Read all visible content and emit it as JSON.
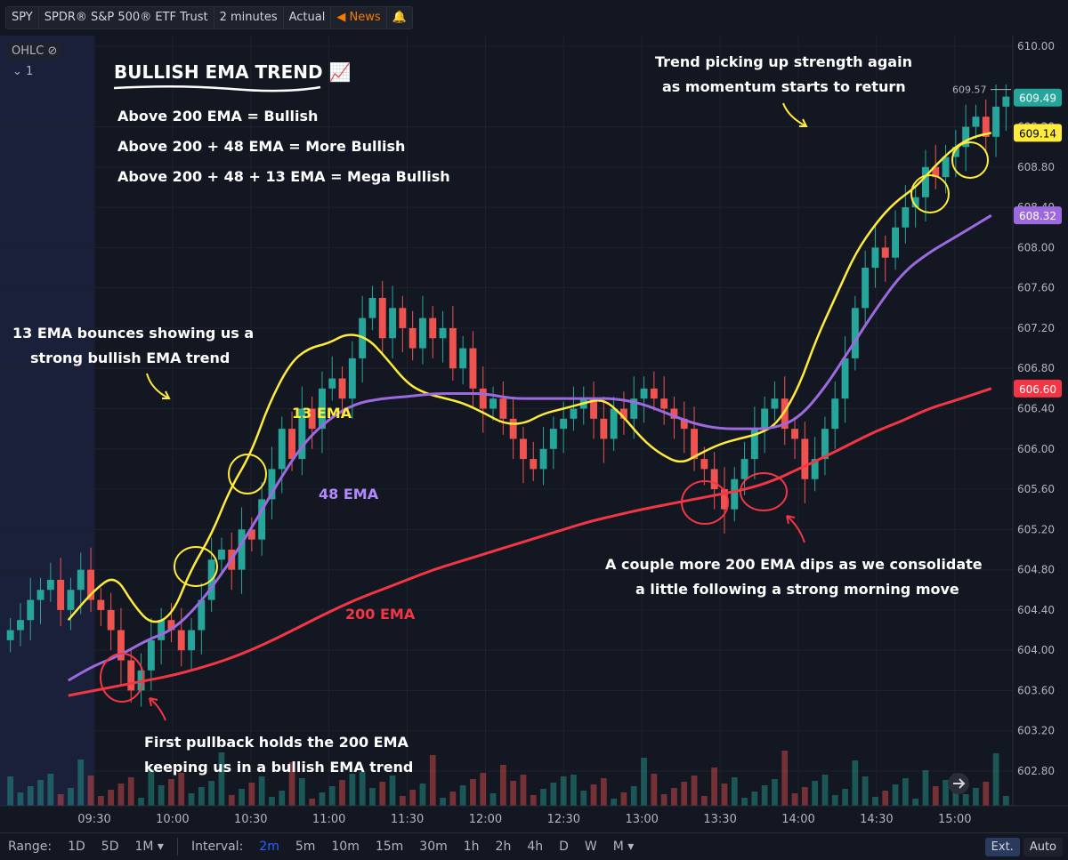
{
  "toolbar": {
    "symbol": "SPY",
    "name": "SPDR® S&P 500® ETF Trust",
    "interval": "2 minutes",
    "mode": "Actual",
    "news": "News",
    "news_icon": "megaphone-icon",
    "alert_icon": "bell-icon"
  },
  "legend": {
    "ohlc_label": "OHLC",
    "collapse_count": "1"
  },
  "bottom": {
    "range_label": "Range:",
    "ranges": [
      "1D",
      "5D",
      "1M"
    ],
    "interval_label": "Interval:",
    "intervals": [
      "2m",
      "5m",
      "10m",
      "15m",
      "30m",
      "1h",
      "2h",
      "4h",
      "D",
      "W",
      "M"
    ],
    "active_interval": "2m",
    "ext": "Ext.",
    "auto": "Auto"
  },
  "colors": {
    "up": "#26a69a",
    "down": "#ef5350",
    "ema13": "#ffeb3b",
    "ema48": "#9c6ade",
    "ema200": "#f23645",
    "annotation_red": "#f23645"
  },
  "annotations": {
    "title": "BULLISH EMA TREND 📈",
    "rule1": "Above 200 EMA = Bullish",
    "rule2": "Above 200 + 48 EMA = More Bullish",
    "rule3": "Above 200 + 48 + 13 EMA = Mega Bullish",
    "bounce_line1": "13 EMA bounces showing us a",
    "bounce_line2": "strong bullish EMA trend",
    "pullback_line1": "First pullback holds the 200 EMA",
    "pullback_line2": "keeping us in a bullish EMA trend",
    "dips_line1": "A couple more 200 EMA dips as we consolidate",
    "dips_line2": "a little following a strong morning move",
    "trend_line1": "Trend picking up strength again",
    "trend_line2": "as momentum starts to return",
    "label_13": "13 EMA",
    "label_48": "48 EMA",
    "label_200": "200 EMA"
  },
  "chart_data": {
    "type": "line",
    "x_tick_labels": [
      "09:30",
      "10:00",
      "10:30",
      "11:00",
      "11:30",
      "12:00",
      "12:30",
      "13:00",
      "13:30",
      "14:00",
      "14:30",
      "15:00"
    ],
    "y_tick_labels": [
      "610.00",
      "609.20",
      "608.80",
      "608.40",
      "608.00",
      "607.60",
      "607.20",
      "606.80",
      "606.40",
      "606.00",
      "605.60",
      "605.20",
      "604.80",
      "604.40",
      "604.00",
      "603.60",
      "603.20",
      "602.80"
    ],
    "ylim": [
      602.6,
      610.1
    ],
    "series": [
      {
        "name": "13 EMA",
        "x": [
          "09:20",
          "09:30",
          "09:38",
          "09:45",
          "09:52",
          "10:00",
          "10:07",
          "10:15",
          "10:22",
          "10:30",
          "10:37",
          "10:45",
          "10:52",
          "11:00",
          "11:07",
          "11:15",
          "11:22",
          "11:30",
          "11:37",
          "11:45",
          "11:52",
          "12:00",
          "12:07",
          "12:15",
          "12:22",
          "12:30",
          "12:37",
          "12:45",
          "12:52",
          "13:00",
          "13:07",
          "13:15",
          "13:22",
          "13:30",
          "13:37",
          "13:45",
          "13:52",
          "14:00",
          "14:07",
          "14:15",
          "14:22",
          "14:30",
          "14:37",
          "14:45",
          "14:52",
          "15:00",
          "15:07",
          "15:14"
        ],
        "values": [
          604.3,
          604.6,
          604.75,
          604.45,
          604.25,
          604.35,
          604.8,
          605.15,
          605.6,
          605.95,
          606.45,
          606.85,
          607.0,
          607.05,
          607.15,
          607.1,
          606.9,
          606.65,
          606.55,
          606.5,
          606.45,
          606.35,
          606.25,
          606.25,
          606.35,
          606.4,
          606.45,
          606.5,
          606.35,
          606.1,
          605.95,
          605.85,
          605.95,
          606.05,
          606.1,
          606.15,
          606.25,
          606.6,
          607.1,
          607.55,
          607.95,
          608.25,
          608.45,
          608.6,
          608.8,
          609.0,
          609.1,
          609.14
        ]
      },
      {
        "name": "48 EMA",
        "x": [
          "09:20",
          "09:30",
          "09:40",
          "09:50",
          "10:00",
          "10:10",
          "10:20",
          "10:30",
          "10:40",
          "10:50",
          "11:00",
          "11:10",
          "11:20",
          "11:30",
          "11:40",
          "11:50",
          "12:00",
          "12:10",
          "12:20",
          "12:30",
          "12:40",
          "12:50",
          "13:00",
          "13:10",
          "13:20",
          "13:30",
          "13:40",
          "13:50",
          "14:00",
          "14:10",
          "14:20",
          "14:30",
          "14:40",
          "14:50",
          "15:00",
          "15:14"
        ],
        "values": [
          603.7,
          603.85,
          603.95,
          604.1,
          604.2,
          604.45,
          604.8,
          605.2,
          605.65,
          606.05,
          606.3,
          606.45,
          606.5,
          606.52,
          606.55,
          606.55,
          606.55,
          606.5,
          606.5,
          606.5,
          606.5,
          606.5,
          606.45,
          606.35,
          606.25,
          606.2,
          606.2,
          606.2,
          606.3,
          606.6,
          607.0,
          607.4,
          607.75,
          607.95,
          608.1,
          608.32
        ]
      },
      {
        "name": "200 EMA",
        "x": [
          "09:20",
          "09:30",
          "09:40",
          "09:50",
          "10:00",
          "10:10",
          "10:20",
          "10:30",
          "10:40",
          "10:50",
          "11:00",
          "11:10",
          "11:20",
          "11:30",
          "11:40",
          "11:50",
          "12:00",
          "12:10",
          "12:20",
          "12:30",
          "12:40",
          "12:50",
          "13:00",
          "13:10",
          "13:20",
          "13:30",
          "13:40",
          "13:50",
          "14:00",
          "14:10",
          "14:20",
          "14:30",
          "14:40",
          "14:50",
          "15:00",
          "15:14"
        ],
        "values": [
          603.55,
          603.6,
          603.65,
          603.7,
          603.75,
          603.82,
          603.9,
          604.0,
          604.12,
          604.25,
          604.38,
          604.5,
          604.6,
          604.7,
          604.8,
          604.88,
          604.96,
          605.04,
          605.12,
          605.2,
          605.28,
          605.34,
          605.4,
          605.45,
          605.5,
          605.55,
          605.6,
          605.68,
          605.8,
          605.92,
          606.05,
          606.18,
          606.28,
          606.4,
          606.48,
          606.6
        ]
      }
    ],
    "price_labels": [
      {
        "label": "609.57",
        "value": 609.57
      },
      {
        "label": "609.49",
        "value": 609.49
      },
      {
        "label": "609.14",
        "value": 609.14
      },
      {
        "label": "608.32",
        "value": 608.32
      },
      {
        "label": "606.60",
        "value": 606.6
      }
    ],
    "candles_close": [
      604.2,
      604.3,
      604.5,
      604.6,
      604.7,
      604.4,
      604.6,
      604.8,
      604.5,
      604.4,
      604.2,
      603.9,
      603.6,
      603.8,
      604.1,
      604.3,
      604.2,
      604.0,
      604.2,
      604.5,
      604.9,
      605.0,
      604.8,
      605.2,
      605.1,
      605.5,
      605.8,
      606.2,
      605.9,
      606.4,
      606.2,
      606.6,
      606.7,
      606.5,
      606.9,
      607.3,
      607.5,
      607.1,
      607.4,
      607.2,
      607.0,
      607.3,
      607.1,
      607.2,
      606.8,
      607.0,
      606.6,
      606.4,
      606.5,
      606.3,
      606.1,
      605.9,
      605.8,
      606.0,
      606.2,
      606.3,
      606.4,
      606.5,
      606.3,
      606.1,
      606.4,
      606.3,
      606.5,
      606.6,
      606.5,
      606.4,
      606.3,
      606.2,
      605.9,
      605.8,
      605.6,
      605.4,
      605.7,
      605.9,
      606.2,
      606.4,
      606.5,
      606.2,
      606.1,
      605.7,
      605.9,
      606.2,
      606.5,
      606.9,
      607.4,
      607.8,
      608.0,
      607.9,
      608.2,
      608.4,
      608.5,
      608.8,
      608.7,
      608.9,
      609.0,
      609.2,
      609.3,
      609.1,
      609.4,
      609.5
    ]
  }
}
